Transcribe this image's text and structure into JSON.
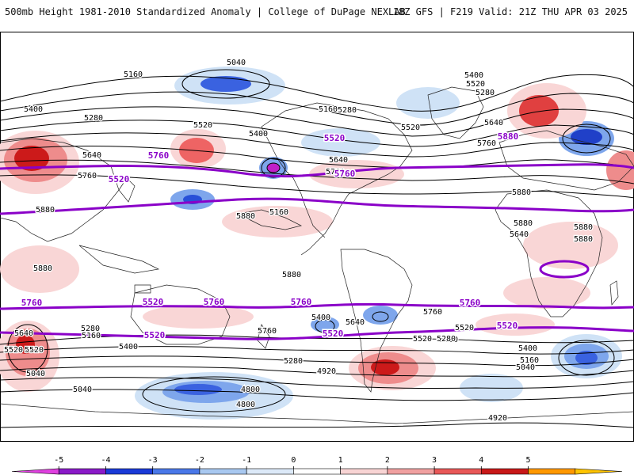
{
  "header": {
    "left": "500mb Height 1981-2010 Standardized Anomaly | College of DuPage NEXLAB",
    "right": "18Z GFS | F219 Valid: 21Z THU APR 03 2025"
  },
  "contour_labels": [
    {
      "text": "5040",
      "kind": "black"
    },
    {
      "text": "5160",
      "kind": "black"
    },
    {
      "text": "5400",
      "kind": "black"
    },
    {
      "text": "5280",
      "kind": "black"
    },
    {
      "text": "5520",
      "kind": "black"
    },
    {
      "text": "5640",
      "kind": "black"
    },
    {
      "text": "5760",
      "kind": "black"
    },
    {
      "text": "5880",
      "kind": "black"
    },
    {
      "text": "5400",
      "kind": "black"
    },
    {
      "text": "5520",
      "kind": "black"
    },
    {
      "text": "5280",
      "kind": "black"
    },
    {
      "text": "5160",
      "kind": "black"
    },
    {
      "text": "5640",
      "kind": "black"
    },
    {
      "text": "5760",
      "kind": "black"
    },
    {
      "text": "5880",
      "kind": "black"
    },
    {
      "text": "5880",
      "kind": "black"
    },
    {
      "text": "5880",
      "kind": "black"
    },
    {
      "text": "5160",
      "kind": "black"
    },
    {
      "text": "5280",
      "kind": "black"
    },
    {
      "text": "5400",
      "kind": "black"
    },
    {
      "text": "5520",
      "kind": "black"
    },
    {
      "text": "5640",
      "kind": "black"
    },
    {
      "text": "5760",
      "kind": "black"
    },
    {
      "text": "5880",
      "kind": "black"
    },
    {
      "text": "5880",
      "kind": "black"
    },
    {
      "text": "5880",
      "kind": "black"
    },
    {
      "text": "5640",
      "kind": "black"
    },
    {
      "text": "5760",
      "kind": "black"
    },
    {
      "text": "5400",
      "kind": "black"
    },
    {
      "text": "5640",
      "kind": "black"
    },
    {
      "text": "5520",
      "kind": "black"
    },
    {
      "text": "5280",
      "kind": "black"
    },
    {
      "text": "5160",
      "kind": "black"
    },
    {
      "text": "5040",
      "kind": "black"
    },
    {
      "text": "4920",
      "kind": "black"
    },
    {
      "text": "4800",
      "kind": "black"
    },
    {
      "text": "4800",
      "kind": "black"
    },
    {
      "text": "5040",
      "kind": "black"
    },
    {
      "text": "5040",
      "kind": "black"
    },
    {
      "text": "5520",
      "kind": "black"
    },
    {
      "text": "5640",
      "kind": "black"
    },
    {
      "text": "5400",
      "kind": "black"
    },
    {
      "text": "5280",
      "kind": "black"
    },
    {
      "text": "5160",
      "kind": "black"
    },
    {
      "text": "5040",
      "kind": "black"
    },
    {
      "text": "5760",
      "kind": "black"
    },
    {
      "text": "5280",
      "kind": "black"
    },
    {
      "text": "5520",
      "kind": "black"
    },
    {
      "text": "5880",
      "kind": "black"
    },
    {
      "text": "4920",
      "kind": "black"
    },
    {
      "text": "5400",
      "kind": "black"
    },
    {
      "text": "5160",
      "kind": "black"
    },
    {
      "text": "5280",
      "kind": "black"
    },
    {
      "text": "5520",
      "kind": "black"
    },
    {
      "text": "5760",
      "kind": "black"
    },
    {
      "text": "5520",
      "kind": "purple"
    },
    {
      "text": "5760",
      "kind": "purple"
    },
    {
      "text": "5520",
      "kind": "purple"
    },
    {
      "text": "5760",
      "kind": "purple"
    },
    {
      "text": "5520",
      "kind": "purple"
    },
    {
      "text": "5760",
      "kind": "purple"
    },
    {
      "text": "5760",
      "kind": "purple"
    },
    {
      "text": "5760",
      "kind": "purple"
    },
    {
      "text": "5760",
      "kind": "purple"
    },
    {
      "text": "5520",
      "kind": "purple"
    },
    {
      "text": "5520",
      "kind": "purple"
    },
    {
      "text": "5520",
      "kind": "purple"
    },
    {
      "text": "5880",
      "kind": "purple"
    }
  ],
  "legend": {
    "ticks": [
      "-5",
      "-4",
      "-3",
      "-2",
      "-1",
      "0",
      "1",
      "2",
      "3",
      "4",
      "5"
    ],
    "colors": [
      "#e040e0",
      "#8a1ac8",
      "#1a3ad8",
      "#4a78e8",
      "#a8c8f0",
      "#dce9f8",
      "#ffffff",
      "#f8d4d4",
      "#f0a0a0",
      "#e85858",
      "#c81818",
      "#ff9800",
      "#ffc400"
    ]
  },
  "colors": {
    "neg_light": "#cfe2f6",
    "neg_mid": "#7ea6ec",
    "neg_strong": "#2850d8",
    "pos_light": "#f9d6d6",
    "pos_mid": "#ee8c8c",
    "pos_strong": "#cc1a1a",
    "contour": "#000000",
    "thick_contour": "#8a00c8",
    "coast": "#222222"
  }
}
